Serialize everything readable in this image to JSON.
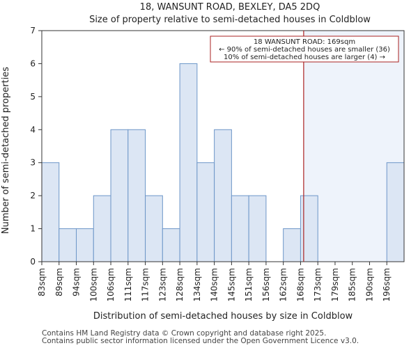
{
  "chart_data": {
    "type": "bar",
    "title_line1": "18, WANSUNT ROAD, BEXLEY, DA5 2DQ",
    "title_line2": "Size of property relative to semi-detached houses in Coldblow",
    "xlabel": "Distribution of semi-detached houses by size in Coldblow",
    "ylabel": "Number of semi-detached properties",
    "categories": [
      "83sqm",
      "89sqm",
      "94sqm",
      "100sqm",
      "106sqm",
      "111sqm",
      "117sqm",
      "123sqm",
      "128sqm",
      "134sqm",
      "140sqm",
      "145sqm",
      "151sqm",
      "156sqm",
      "162sqm",
      "168sqm",
      "173sqm",
      "179sqm",
      "185sqm",
      "190sqm",
      "196sqm"
    ],
    "values": [
      3,
      1,
      1,
      2,
      4,
      4,
      2,
      1,
      6,
      3,
      4,
      2,
      2,
      0,
      1,
      2,
      0,
      0,
      0,
      0,
      3
    ],
    "ylim": [
      0,
      7
    ],
    "yticks": [
      0,
      1,
      2,
      3,
      4,
      5,
      6,
      7
    ],
    "highlight_value_sqm": 169,
    "highlight_from_bin_fraction": 15.2,
    "annotation": {
      "line1": "18 WANSUNT ROAD: 169sqm",
      "line2": "← 90% of semi-detached houses are smaller (36)",
      "line3": "10% of semi-detached houses are larger (4) →"
    },
    "colors": {
      "bar_fill": "#dce6f4",
      "bar_stroke": "#6d96c8",
      "marker_line": "#aa2222",
      "annotation_border": "#aa2222",
      "highlight_shade": "#eef3fb",
      "axis": "#333333"
    }
  },
  "footer": {
    "line1": "Contains HM Land Registry data © Crown copyright and database right 2025.",
    "line2": "Contains public sector information licensed under the Open Government Licence v3.0."
  }
}
